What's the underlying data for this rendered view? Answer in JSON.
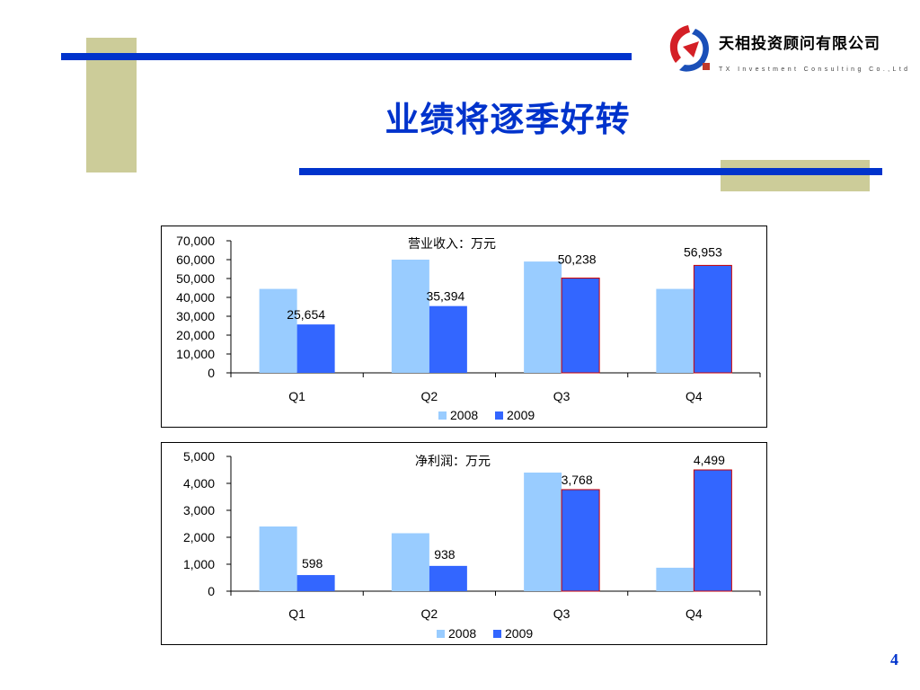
{
  "slide": {
    "title": "业绩将逐季好转",
    "page_number": "4"
  },
  "logo": {
    "name": "天相投资顾问有限公司",
    "sub": "TX Investment Consulting Co.,Ltd"
  },
  "colors": {
    "accent_blue": "#0033cc",
    "decor_tan": "#cccc99",
    "series_2008": "#99ccff",
    "series_2009": "#3366ff",
    "highlight_border": "#cc0000"
  },
  "chart_data": [
    {
      "type": "bar",
      "title": "营业收入：万元",
      "categories": [
        "Q1",
        "Q2",
        "Q3",
        "Q4"
      ],
      "series": [
        {
          "name": "2008",
          "values": [
            44500,
            60000,
            59000,
            44500
          ]
        },
        {
          "name": "2009",
          "values": [
            25654,
            35394,
            50238,
            56953
          ]
        }
      ],
      "data_labels": [
        "25,654",
        "35,394",
        "50,238",
        "56,953"
      ],
      "ylim": [
        0,
        70000
      ],
      "yticks": [
        0,
        10000,
        20000,
        30000,
        40000,
        50000,
        60000,
        70000
      ],
      "ytick_labels": [
        "0",
        "10,000",
        "20,000",
        "30,000",
        "40,000",
        "50,000",
        "60,000",
        "70,000"
      ],
      "highlighted": [
        2,
        3
      ],
      "legend": "bottom",
      "grid": false
    },
    {
      "type": "bar",
      "title": "净利润：万元",
      "categories": [
        "Q1",
        "Q2",
        "Q3",
        "Q4"
      ],
      "series": [
        {
          "name": "2008",
          "values": [
            2400,
            2150,
            4400,
            870
          ]
        },
        {
          "name": "2009",
          "values": [
            598,
            938,
            3768,
            4499
          ]
        }
      ],
      "data_labels": [
        "598",
        "938",
        "3,768",
        "4,499"
      ],
      "ylim": [
        0,
        5000
      ],
      "yticks": [
        0,
        1000,
        2000,
        3000,
        4000,
        5000
      ],
      "ytick_labels": [
        "0",
        "1,000",
        "2,000",
        "3,000",
        "4,000",
        "5,000"
      ],
      "highlighted": [
        2,
        3
      ],
      "legend": "bottom",
      "grid": false
    }
  ]
}
